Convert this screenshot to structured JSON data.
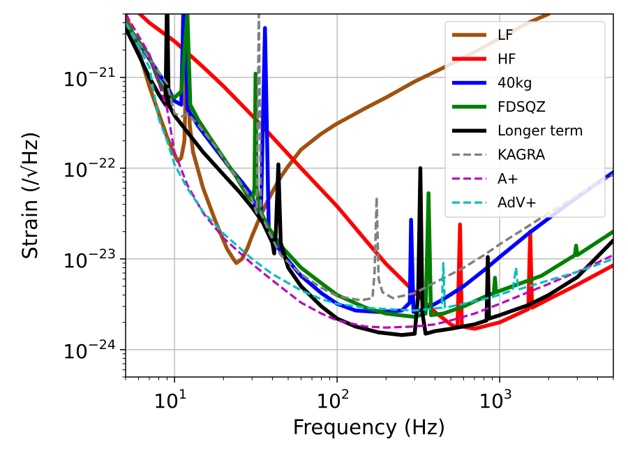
{
  "chart_data": {
    "type": "line",
    "title": "",
    "xlabel": "Frequency (Hz)",
    "ylabel": "Strain (/√Hz)",
    "xscale": "log",
    "yscale": "log",
    "xlim": [
      5,
      5000
    ],
    "ylim": [
      5e-25,
      5e-21
    ],
    "grid": true,
    "legend_position": "top-right",
    "x_ticks": [
      {
        "value": 10,
        "base": "10",
        "exp": "1"
      },
      {
        "value": 100,
        "base": "10",
        "exp": "2"
      },
      {
        "value": 1000,
        "base": "10",
        "exp": "3"
      }
    ],
    "y_ticks": [
      {
        "value": 1e-24,
        "base": "10",
        "exp": "−24"
      },
      {
        "value": 1e-23,
        "base": "10",
        "exp": "−23"
      },
      {
        "value": 1e-22,
        "base": "10",
        "exp": "−22"
      },
      {
        "value": 1e-21,
        "base": "10",
        "exp": "−21"
      }
    ],
    "series": [
      {
        "name": "LF",
        "color": "#a0520f",
        "dash": "solid",
        "width": 5.5,
        "points": [
          [
            5,
            5e-21
          ],
          [
            6,
            2e-21
          ],
          [
            7,
            8e-22
          ],
          [
            8,
            4e-22
          ],
          [
            9,
            2.2e-22
          ],
          [
            10,
            1.4e-22
          ],
          [
            10.5,
            1.2e-22
          ],
          [
            11,
            1.3e-22
          ],
          [
            11.5,
            2e-22
          ],
          [
            12,
            4e-21
          ],
          [
            12.4,
            3e-22
          ],
          [
            13,
            1.5e-22
          ],
          [
            15,
            6e-23
          ],
          [
            18,
            2.5e-23
          ],
          [
            21,
            1.3e-23
          ],
          [
            23,
            1e-23
          ],
          [
            24,
            9e-24
          ],
          [
            26,
            1e-23
          ],
          [
            28,
            1.3e-23
          ],
          [
            30,
            1.8e-23
          ],
          [
            33,
            2.7e-23
          ],
          [
            36,
            3.8e-23
          ],
          [
            40,
            5.5e-23
          ],
          [
            45,
            8e-23
          ],
          [
            50,
            1.05e-22
          ],
          [
            60,
            1.6e-22
          ],
          [
            80,
            2.4e-22
          ],
          [
            100,
            3.1e-22
          ],
          [
            150,
            4.6e-22
          ],
          [
            200,
            6e-22
          ],
          [
            300,
            9e-22
          ],
          [
            500,
            1.4e-21
          ],
          [
            700,
            1.9e-21
          ],
          [
            1000,
            2.7e-21
          ],
          [
            1500,
            4e-21
          ],
          [
            2000,
            5e-21
          ]
        ]
      },
      {
        "name": "HF",
        "color": "#ff0000",
        "dash": "solid",
        "width": 5.5,
        "points": [
          [
            5,
            7e-21
          ],
          [
            7,
            4e-21
          ],
          [
            10,
            2.5e-21
          ],
          [
            15,
            1.3e-21
          ],
          [
            20,
            8e-22
          ],
          [
            30,
            3.8e-22
          ],
          [
            40,
            2.2e-22
          ],
          [
            60,
            1e-22
          ],
          [
            80,
            5.8e-23
          ],
          [
            100,
            3.8e-23
          ],
          [
            150,
            1.6e-23
          ],
          [
            200,
            8.8e-24
          ],
          [
            300,
            4.3e-24
          ],
          [
            400,
            2.6e-24
          ],
          [
            500,
            1.9e-24
          ],
          [
            550,
            1.75e-24
          ],
          [
            570,
            2.4e-23
          ],
          [
            585,
            1.8e-24
          ],
          [
            700,
            1.7e-24
          ],
          [
            1000,
            2e-24
          ],
          [
            1500,
            2.8e-24
          ],
          [
            1540,
            2e-23
          ],
          [
            1580,
            2.9e-24
          ],
          [
            2000,
            3.6e-24
          ],
          [
            3000,
            5.2e-24
          ],
          [
            5000,
            8.5e-24
          ]
        ]
      },
      {
        "name": "40kg",
        "color": "#0000ff",
        "dash": "solid",
        "width": 5.5,
        "points": [
          [
            5,
            4e-21
          ],
          [
            7,
            1.6e-21
          ],
          [
            9,
            8e-22
          ],
          [
            10,
            5.5e-22
          ],
          [
            11,
            5e-22
          ],
          [
            11.5,
            2e-20
          ],
          [
            12,
            4.5e-22
          ],
          [
            14,
            2.9e-22
          ],
          [
            18,
            1.6e-22
          ],
          [
            22,
            1e-22
          ],
          [
            26,
            7e-23
          ],
          [
            30,
            5e-23
          ],
          [
            32,
            3.3e-23
          ],
          [
            34,
            3.2e-23
          ],
          [
            36,
            3.5e-21
          ],
          [
            38,
            2e-23
          ],
          [
            45,
            1.2e-23
          ],
          [
            60,
            6.5e-24
          ],
          [
            80,
            4.2e-24
          ],
          [
            100,
            3.2e-24
          ],
          [
            130,
            2.7e-24
          ],
          [
            180,
            2.6e-24
          ],
          [
            250,
            2.7e-24
          ],
          [
            280,
            3.3e-24
          ],
          [
            285,
            2.7e-23
          ],
          [
            295,
            2.6e-24
          ],
          [
            350,
            2.8e-24
          ],
          [
            450,
            3.6e-24
          ],
          [
            600,
            5e-24
          ],
          [
            800,
            7.5e-24
          ],
          [
            1000,
            1.05e-23
          ],
          [
            1500,
            1.9e-23
          ],
          [
            2000,
            2.8e-23
          ],
          [
            3000,
            4.8e-23
          ],
          [
            5000,
            9e-23
          ]
        ]
      },
      {
        "name": "FDSQZ",
        "color": "#008000",
        "dash": "solid",
        "width": 5.5,
        "points": [
          [
            5,
            4e-21
          ],
          [
            7,
            1.7e-21
          ],
          [
            8,
            9e-22
          ],
          [
            9,
            6.5e-22
          ],
          [
            10,
            6e-22
          ],
          [
            11,
            7e-22
          ],
          [
            12,
            5e-21
          ],
          [
            12.5,
            5e-22
          ],
          [
            14,
            3.4e-22
          ],
          [
            17,
            2e-22
          ],
          [
            20,
            1.3e-22
          ],
          [
            24,
            8e-23
          ],
          [
            28,
            5e-23
          ],
          [
            30,
            4.4e-23
          ],
          [
            31,
            6e-23
          ],
          [
            31.5,
            1.1e-21
          ],
          [
            32,
            6e-23
          ],
          [
            33,
            3.6e-23
          ],
          [
            38,
            2.2e-23
          ],
          [
            45,
            1.4e-23
          ],
          [
            60,
            8e-24
          ],
          [
            80,
            5.4e-24
          ],
          [
            100,
            4e-24
          ],
          [
            150,
            2.9e-24
          ],
          [
            200,
            2.5e-24
          ],
          [
            300,
            2.3e-24
          ],
          [
            350,
            2.5e-24
          ],
          [
            365,
            5.3e-23
          ],
          [
            378,
            2.4e-24
          ],
          [
            450,
            2.5e-24
          ],
          [
            600,
            3e-24
          ],
          [
            800,
            3.8e-24
          ],
          [
            920,
            4.2e-24
          ],
          [
            935,
            6.2e-24
          ],
          [
            950,
            4.3e-24
          ],
          [
            1200,
            5e-24
          ],
          [
            1800,
            6.5e-24
          ],
          [
            2900,
            1.1e-23
          ],
          [
            2950,
            1.4e-23
          ],
          [
            3000,
            1.1e-23
          ],
          [
            5000,
            2e-23
          ]
        ]
      },
      {
        "name": "Longer term",
        "color": "#000000",
        "dash": "solid",
        "width": 5.5,
        "points": [
          [
            5,
            3.5e-21
          ],
          [
            6,
            1.8e-21
          ],
          [
            7,
            1e-21
          ],
          [
            8,
            6.5e-22
          ],
          [
            8.8,
            5e-22
          ],
          [
            9,
            1e-20
          ],
          [
            9.2,
            5e-22
          ],
          [
            10,
            3.8e-22
          ],
          [
            12,
            2.5e-22
          ],
          [
            15,
            1.5e-22
          ],
          [
            20,
            8.5e-23
          ],
          [
            25,
            5.5e-23
          ],
          [
            30,
            3.7e-23
          ],
          [
            35,
            2.5e-23
          ],
          [
            40,
            1.5e-23
          ],
          [
            41,
            1.15e-23
          ],
          [
            42,
            2e-23
          ],
          [
            43.5,
            1.1e-22
          ],
          [
            45,
            1.5e-23
          ],
          [
            50,
            8e-24
          ],
          [
            60,
            5e-24
          ],
          [
            80,
            3e-24
          ],
          [
            100,
            2.2e-24
          ],
          [
            130,
            1.8e-24
          ],
          [
            180,
            1.55e-24
          ],
          [
            250,
            1.45e-24
          ],
          [
            300,
            1.5e-24
          ],
          [
            315,
            4e-24
          ],
          [
            325,
            1e-22
          ],
          [
            335,
            2.5e-24
          ],
          [
            350,
            1.5e-24
          ],
          [
            400,
            1.6e-24
          ],
          [
            500,
            1.7e-24
          ],
          [
            700,
            1.9e-24
          ],
          [
            830,
            2.1e-24
          ],
          [
            845,
            1.05e-23
          ],
          [
            860,
            2.2e-24
          ],
          [
            1000,
            2.4e-24
          ],
          [
            1500,
            3.1e-24
          ],
          [
            2000,
            4e-24
          ],
          [
            3000,
            6.3e-24
          ],
          [
            5000,
            1.6e-23
          ]
        ]
      },
      {
        "name": "KAGRA",
        "color": "#808080",
        "dash": "dashed",
        "width": 3.5,
        "points": [
          [
            5,
            4e-21
          ],
          [
            7,
            1.6e-21
          ],
          [
            9,
            8.5e-22
          ],
          [
            10,
            4e-22
          ],
          [
            11,
            3.7e-22
          ],
          [
            12,
            4e-22
          ],
          [
            14,
            3e-22
          ],
          [
            18,
            1.7e-22
          ],
          [
            22,
            1e-22
          ],
          [
            26,
            6.5e-23
          ],
          [
            30,
            4.5e-23
          ],
          [
            32,
            3.2e-23
          ],
          [
            33,
            5e-21
          ],
          [
            34,
            3.2e-23
          ],
          [
            38,
            2e-23
          ],
          [
            45,
            1.1e-23
          ],
          [
            60,
            6.8e-24
          ],
          [
            80,
            4.8e-24
          ],
          [
            100,
            3.9e-24
          ],
          [
            140,
            3.5e-24
          ],
          [
            165,
            3.7e-24
          ],
          [
            170,
            7e-24
          ],
          [
            175,
            4.8e-23
          ],
          [
            180,
            6e-24
          ],
          [
            190,
            4.3e-24
          ],
          [
            220,
            3.7e-24
          ],
          [
            300,
            4.2e-24
          ],
          [
            400,
            5.5e-24
          ],
          [
            600,
            8e-24
          ],
          [
            800,
            1.1e-23
          ],
          [
            1000,
            1.45e-23
          ],
          [
            1500,
            2.3e-23
          ],
          [
            2000,
            3.2e-23
          ],
          [
            3000,
            5e-23
          ],
          [
            5000,
            8.5e-23
          ]
        ]
      },
      {
        "name": "A+",
        "color": "#bf00bf",
        "dash": "dashed",
        "width": 3.2,
        "points": [
          [
            5,
            5e-21
          ],
          [
            7,
            1.8e-21
          ],
          [
            9,
            4.5e-22
          ],
          [
            10,
            1.5e-22
          ],
          [
            12,
            6.5e-23
          ],
          [
            15,
            3.2e-23
          ],
          [
            20,
            1.7e-23
          ],
          [
            30,
            8.8e-24
          ],
          [
            40,
            5.8e-24
          ],
          [
            60,
            3.3e-24
          ],
          [
            80,
            2.5e-24
          ],
          [
            100,
            2.1e-24
          ],
          [
            150,
            1.8e-24
          ],
          [
            200,
            1.75e-24
          ],
          [
            300,
            1.8e-24
          ],
          [
            400,
            1.9e-24
          ],
          [
            500,
            2.1e-24
          ],
          [
            700,
            2.5e-24
          ],
          [
            1000,
            3.2e-24
          ],
          [
            1500,
            4.3e-24
          ],
          [
            2000,
            5.3e-24
          ],
          [
            3000,
            7.2e-24
          ],
          [
            5000,
            1.1e-23
          ]
        ]
      },
      {
        "name": "AdV+",
        "color": "#00bfbf",
        "dash": "dashed",
        "width": 3.2,
        "points": [
          [
            5,
            4e-21
          ],
          [
            7,
            1.3e-21
          ],
          [
            8,
            3.5e-22
          ],
          [
            9,
            2e-22
          ],
          [
            10,
            1.1e-22
          ],
          [
            12,
            6e-23
          ],
          [
            15,
            3.3e-23
          ],
          [
            20,
            1.9e-23
          ],
          [
            30,
            1e-23
          ],
          [
            40,
            6.8e-24
          ],
          [
            60,
            4.5e-24
          ],
          [
            80,
            3.6e-24
          ],
          [
            100,
            3.2e-24
          ],
          [
            150,
            2.9e-24
          ],
          [
            200,
            2.8e-24
          ],
          [
            300,
            2.7e-24
          ],
          [
            440,
            2.9e-24
          ],
          [
            450,
            9e-24
          ],
          [
            460,
            2.9e-24
          ],
          [
            600,
            3.2e-24
          ],
          [
            900,
            3.8e-24
          ],
          [
            1200,
            4.5e-24
          ],
          [
            1260,
            8e-24
          ],
          [
            1300,
            4.6e-24
          ],
          [
            2000,
            5.8e-24
          ],
          [
            3000,
            7.2e-24
          ],
          [
            5000,
            1e-23
          ]
        ]
      }
    ]
  }
}
